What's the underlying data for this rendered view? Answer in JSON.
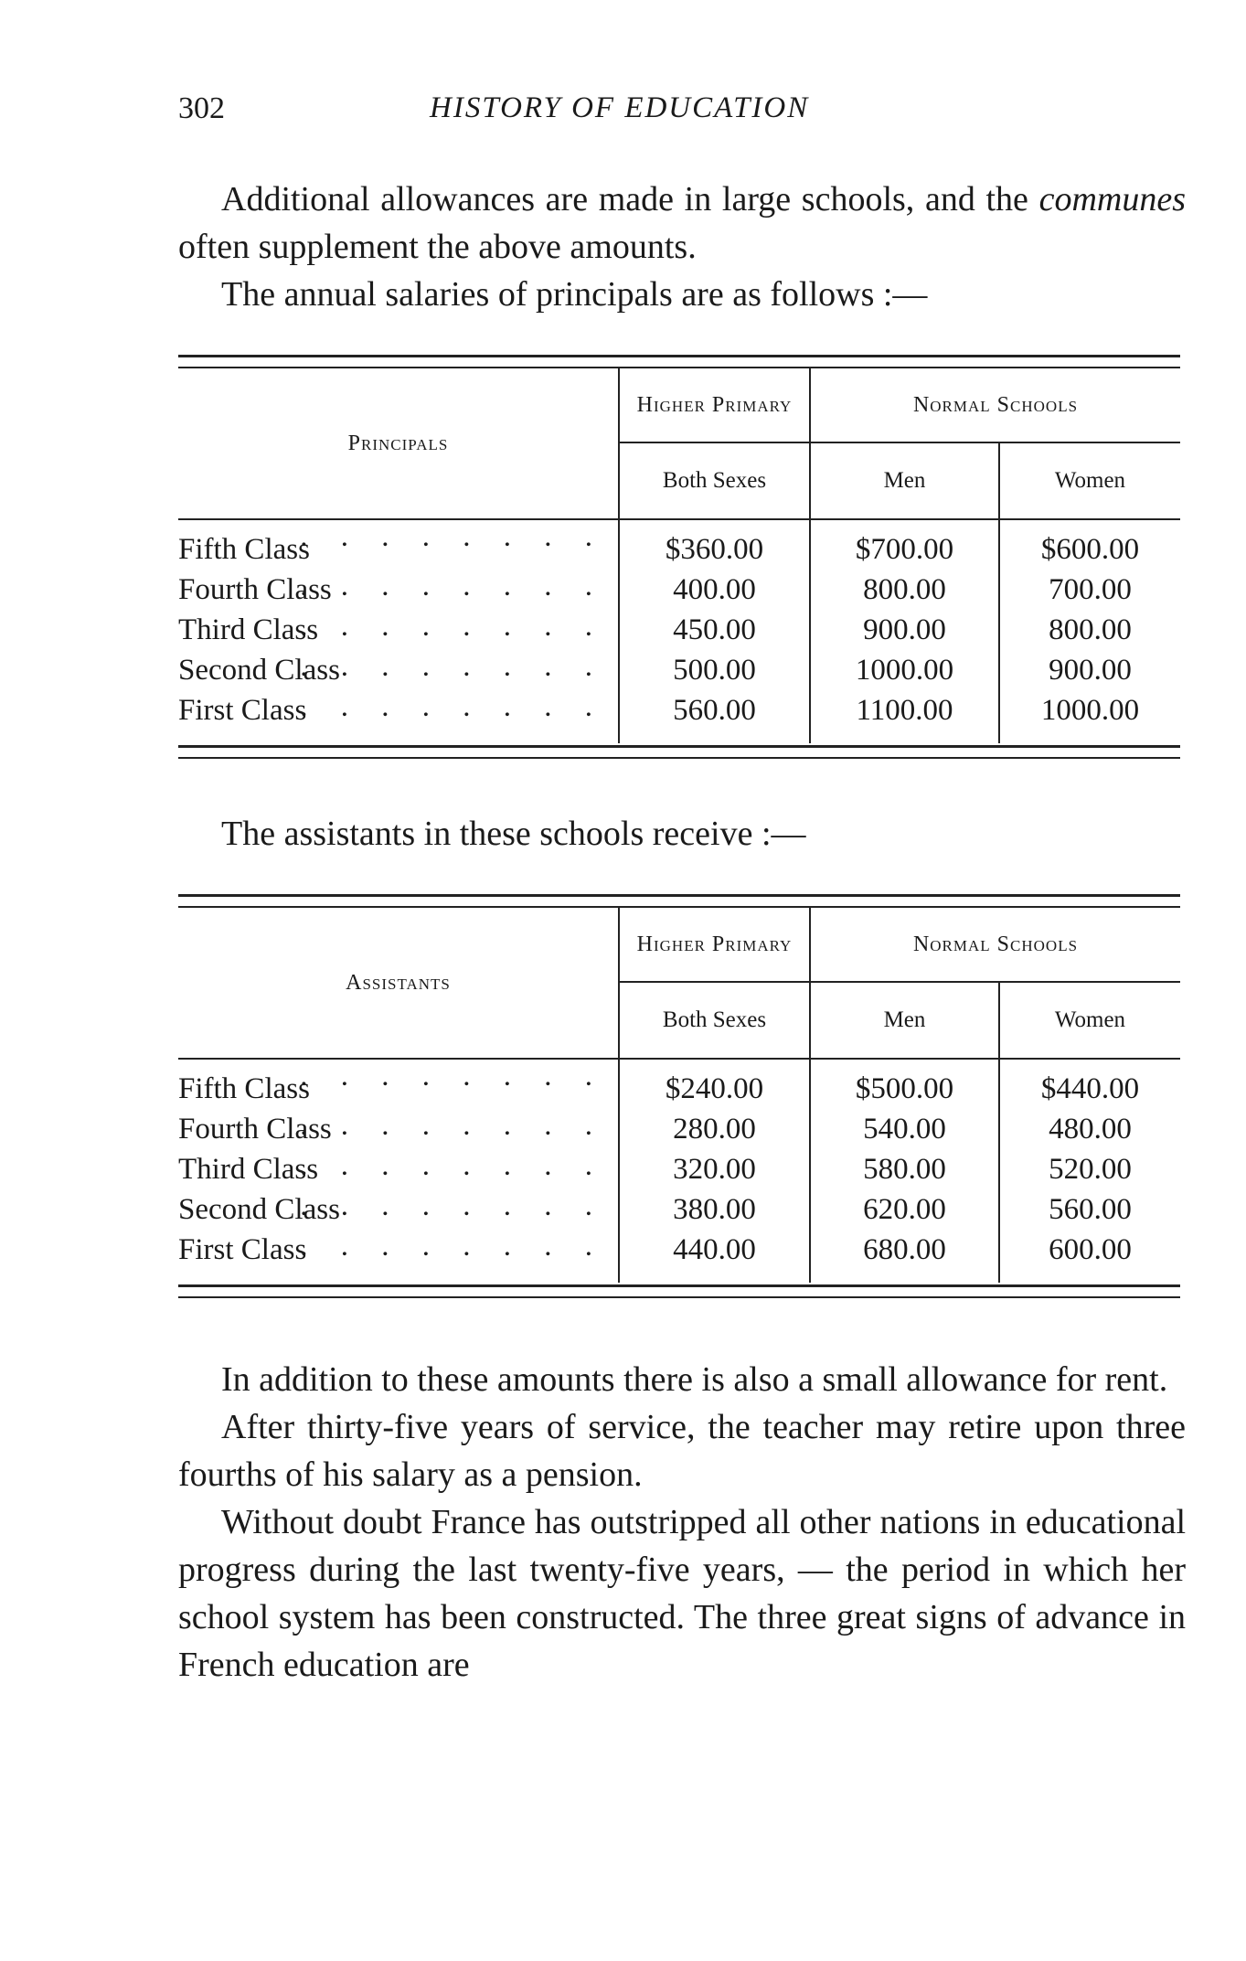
{
  "header": {
    "page_number": "302",
    "running_title": "HISTORY OF EDUCATION"
  },
  "intro": [
    "Additional allowances are made in large schools, and the communes often supplement the above amounts.",
    "The annual salaries of principals are as follows :—"
  ],
  "intro_parts": {
    "a": "Additional allowances are made in large schools, and the ",
    "em": "communes",
    "b": " often supplement the above amounts."
  },
  "principals_table": {
    "row_header": "Principals",
    "higher_primary": "Higher Primary",
    "normal_schools": "Normal Schools",
    "sub": [
      "Both Sexes",
      "Men",
      "Women"
    ],
    "rows": [
      {
        "label": "Fifth Class",
        "values": [
          "$360.00",
          "$700.00",
          "$600.00"
        ]
      },
      {
        "label": "Fourth Class",
        "values": [
          "400.00",
          "800.00",
          "700.00"
        ]
      },
      {
        "label": "Third Class",
        "values": [
          "450.00",
          "900.00",
          "800.00"
        ]
      },
      {
        "label": "Second Class",
        "values": [
          "500.00",
          "1000.00",
          "900.00"
        ]
      },
      {
        "label": "First Class",
        "values": [
          "560.00",
          "1100.00",
          "1000.00"
        ]
      }
    ]
  },
  "between": "The assistants in these schools receive :—",
  "assistants_table": {
    "row_header": "Assistants",
    "higher_primary": "Higher Primary",
    "normal_schools": "Normal Schools",
    "sub": [
      "Both Sexes",
      "Men",
      "Women"
    ],
    "rows": [
      {
        "label": "Fifth Class",
        "values": [
          "$240.00",
          "$500.00",
          "$440.00"
        ]
      },
      {
        "label": "Fourth Class",
        "values": [
          "280.00",
          "540.00",
          "480.00"
        ]
      },
      {
        "label": "Third Class",
        "values": [
          "320.00",
          "580.00",
          "520.00"
        ]
      },
      {
        "label": "Second Class",
        "values": [
          "380.00",
          "620.00",
          "560.00"
        ]
      },
      {
        "label": "First Class",
        "values": [
          "440.00",
          "680.00",
          "600.00"
        ]
      }
    ]
  },
  "closing": [
    "In addition to these amounts there is also a small allowance for rent.",
    "After thirty-five years of service, the teacher may retire upon three fourths of his salary as a pension.",
    "Without doubt France has outstripped all other nations in educational progress during the last twenty-five years, — the period in which her school system has been constructed. The three great signs of advance in French education are"
  ],
  "dots": ". . . . . . . ."
}
